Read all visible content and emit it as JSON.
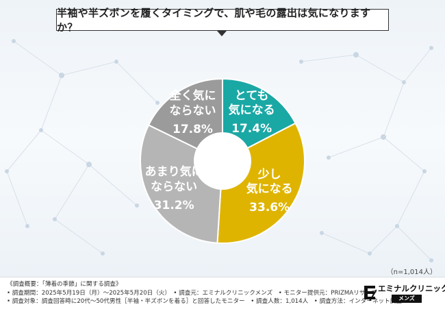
{
  "title": "半袖や半ズボンを履くタイミングで、肌や毛の露出は気になりますか？",
  "sample_note": "（n=1,014人）",
  "colors": {
    "teal": "#1aa8a5",
    "gold": "#dfb400",
    "light_gray": "#b5b5b5",
    "dark_gray": "#9b9b9b",
    "title_border": "#333333"
  },
  "chart_data": {
    "type": "pie",
    "donut": true,
    "title": "半袖や半ズボンを履くタイミングで、肌や毛の露出は気になりますか？",
    "slices": [
      {
        "label": "とても気になる",
        "label_lines": [
          "とても",
          "気になる"
        ],
        "value": 17.4,
        "pct_text": "17.4%",
        "color": "#1aa8a5"
      },
      {
        "label": "少し気になる",
        "label_lines": [
          "少し",
          "気になる"
        ],
        "value": 33.6,
        "pct_text": "33.6%",
        "color": "#dfb400"
      },
      {
        "label": "あまり気にならない",
        "label_lines": [
          "あまり気に",
          "ならない"
        ],
        "value": 31.2,
        "pct_text": "31.2%",
        "color": "#b5b5b5"
      },
      {
        "label": "全く気にならない",
        "label_lines": [
          "全く気に",
          "ならない"
        ],
        "value": 17.8,
        "pct_text": "17.8%",
        "color": "#9b9b9b"
      }
    ]
  },
  "footer": {
    "lines": [
      "《調査概要：「薄着の季節」に関する調査》",
      "• 調査期間：2025年5月19日（月）〜2025年5月20日（火）　• 調査元：エミナルクリニックメンズ　• モニター提供元：PRIZMAリサーチ",
      "• 調査対象：調査回答時に20代〜50代男性［半袖・半ズボンを着る］と回答したモニター　• 調査人数：1,014人　• 調査方法：インターネット調査"
    ]
  },
  "brand": {
    "name": "エミナルクリニック",
    "sub": "メンズ"
  }
}
